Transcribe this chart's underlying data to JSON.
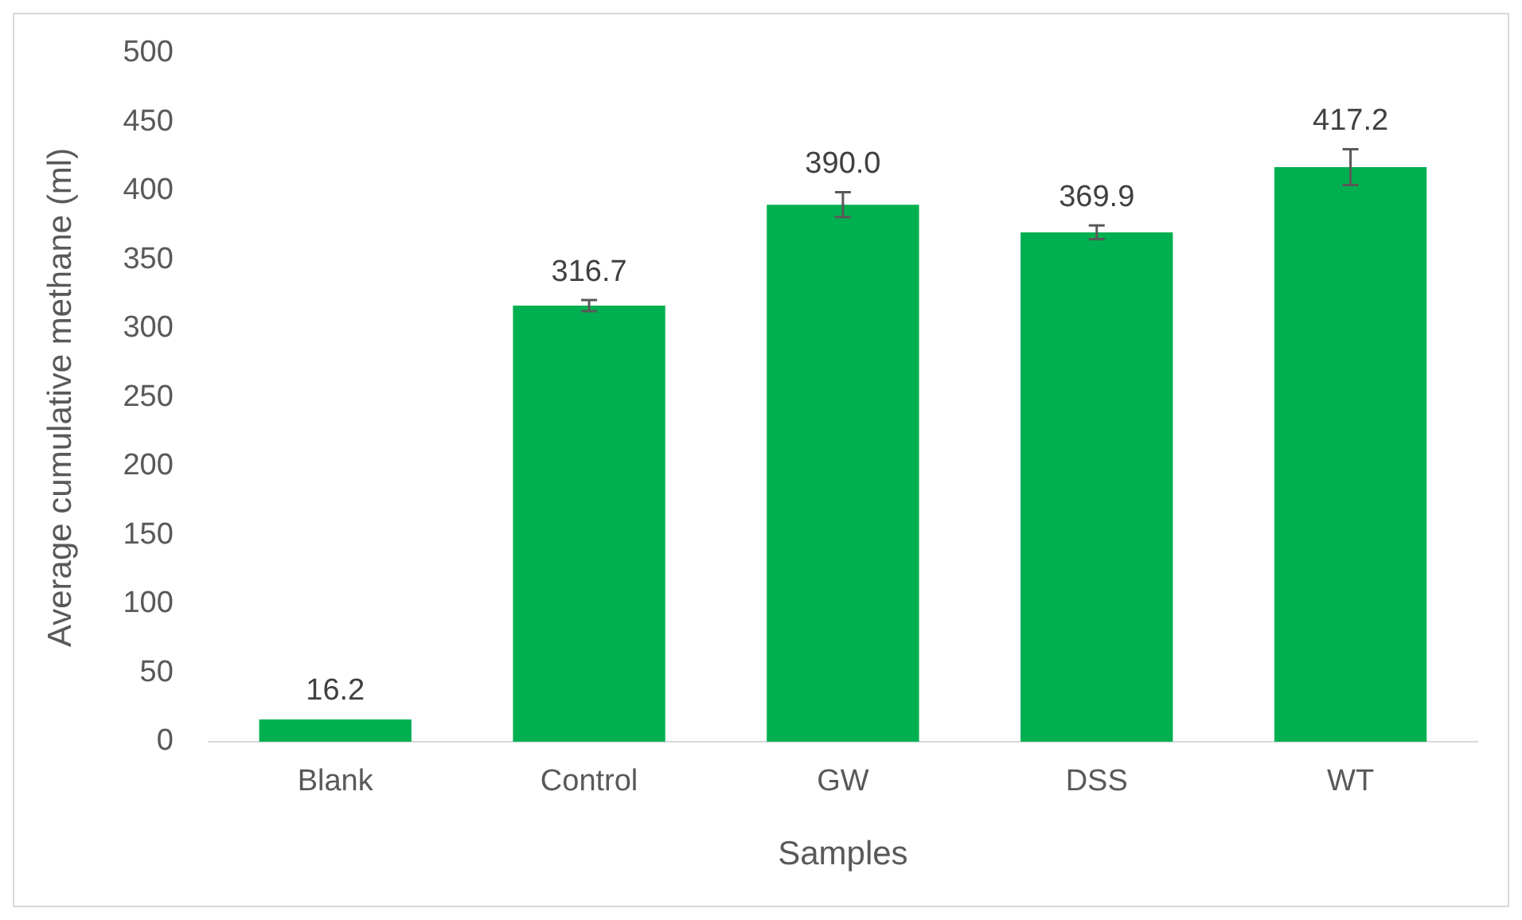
{
  "chart_data": {
    "type": "bar",
    "xlabel": "Samples",
    "ylabel": "Average cumulative methane (ml)",
    "categories": [
      "Blank",
      "Control",
      "GW",
      "DSS",
      "WT"
    ],
    "values": [
      16.2,
      316.7,
      390.0,
      369.9,
      417.2
    ],
    "value_labels": [
      "16.2",
      "316.7",
      "390.0",
      "369.9",
      "417.2"
    ],
    "errors": [
      null,
      4,
      9,
      5,
      13
    ],
    "color": "#00b050",
    "ylim": [
      0,
      500
    ],
    "yticks": [
      0,
      50,
      100,
      150,
      200,
      250,
      300,
      350,
      400,
      450,
      500
    ],
    "grid": false,
    "legend": false
  }
}
